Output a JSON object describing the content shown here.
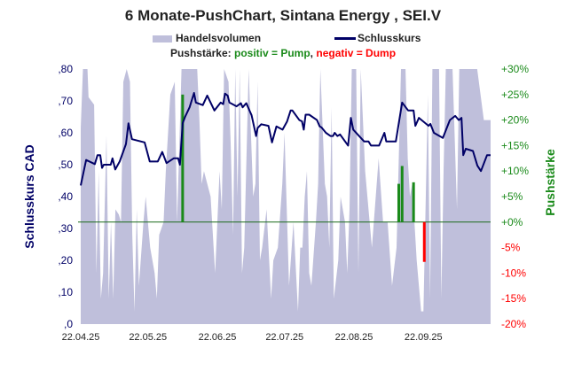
{
  "chart_data": {
    "type": "combo",
    "title": "6 Monate-PushChart, Sintana Energy , SEI.V",
    "legend": {
      "volume": "Handelsvolumen",
      "price": "Schlusskurs"
    },
    "push_legend": {
      "prefix": "Pushstärke:",
      "positive": "positiv = Pump",
      "comma": ",",
      "negative": "negativ = Dump"
    },
    "ylabel_left": "Schlusskurs CAD",
    "ylabel_right": "Pushstärke",
    "ylim_left": [
      0,
      0.8
    ],
    "ylim_right": [
      -20,
      30
    ],
    "left_ticks": [
      ",0",
      ",10",
      ",20",
      ",30",
      ",40",
      ",50",
      ",60",
      ",70",
      ",80"
    ],
    "right_ticks": [
      "-20%",
      "-15%",
      "-10%",
      "-5%",
      "+0%",
      "+5%",
      "+10%",
      "+15%",
      "+20%",
      "+25%",
      "+30%"
    ],
    "x_ticks": [
      {
        "label": "22.04.25",
        "day": 0
      },
      {
        "label": "22.05.25",
        "day": 30
      },
      {
        "label": "22.06.25",
        "day": 61
      },
      {
        "label": "22.07.25",
        "day": 91
      },
      {
        "label": "22.08.25",
        "day": 122
      },
      {
        "label": "22.09.25",
        "day": 153
      }
    ],
    "x_range_days": [
      0,
      183
    ],
    "colors": {
      "price": "#000066",
      "volume": "#bfbfdb",
      "pump": "#1a8a1a",
      "dump": "#ff0000",
      "zero": "#1a6a1a"
    },
    "price": [
      [
        0,
        0.435
      ],
      [
        2.4,
        0.515
      ],
      [
        6.3,
        0.502
      ],
      [
        7.5,
        0.53
      ],
      [
        8.7,
        0.53
      ],
      [
        9.5,
        0.49
      ],
      [
        10.3,
        0.5
      ],
      [
        13.4,
        0.5
      ],
      [
        14.2,
        0.52
      ],
      [
        15.4,
        0.485
      ],
      [
        17.4,
        0.51
      ],
      [
        20.2,
        0.565
      ],
      [
        21.3,
        0.63
      ],
      [
        22.9,
        0.58
      ],
      [
        28.5,
        0.57
      ],
      [
        30.8,
        0.51
      ],
      [
        34.4,
        0.51
      ],
      [
        36.4,
        0.54
      ],
      [
        38.3,
        0.505
      ],
      [
        41.5,
        0.52
      ],
      [
        43.5,
        0.52
      ],
      [
        44.3,
        0.5
      ],
      [
        45.5,
        0.63
      ],
      [
        46.6,
        0.65
      ],
      [
        48.6,
        0.68
      ],
      [
        50.6,
        0.725
      ],
      [
        51.4,
        0.695
      ],
      [
        54.5,
        0.687
      ],
      [
        56.5,
        0.717
      ],
      [
        59.7,
        0.67
      ],
      [
        62.5,
        0.695
      ],
      [
        63.6,
        0.69
      ],
      [
        64.4,
        0.723
      ],
      [
        65.6,
        0.717
      ],
      [
        66.4,
        0.695
      ],
      [
        69.6,
        0.683
      ],
      [
        71.5,
        0.693
      ],
      [
        72.3,
        0.68
      ],
      [
        73.9,
        0.693
      ],
      [
        76.3,
        0.655
      ],
      [
        78.3,
        0.59
      ],
      [
        79,
        0.615
      ],
      [
        80.6,
        0.627
      ],
      [
        83.8,
        0.622
      ],
      [
        85.4,
        0.57
      ],
      [
        87.4,
        0.62
      ],
      [
        90.1,
        0.61
      ],
      [
        92.1,
        0.635
      ],
      [
        93.7,
        0.67
      ],
      [
        94.5,
        0.67
      ],
      [
        97.6,
        0.64
      ],
      [
        98.8,
        0.636
      ],
      [
        99.6,
        0.61
      ],
      [
        100.4,
        0.657
      ],
      [
        102,
        0.657
      ],
      [
        105.5,
        0.64
      ],
      [
        106.7,
        0.62
      ],
      [
        107.5,
        0.617
      ],
      [
        109.5,
        0.6
      ],
      [
        111.5,
        0.59
      ],
      [
        112.6,
        0.59
      ],
      [
        113.4,
        0.6
      ],
      [
        114.6,
        0.59
      ],
      [
        115.8,
        0.595
      ],
      [
        119.4,
        0.56
      ],
      [
        120.6,
        0.647
      ],
      [
        121.7,
        0.61
      ],
      [
        126.5,
        0.573
      ],
      [
        128.5,
        0.573
      ],
      [
        129.6,
        0.56
      ],
      [
        133.2,
        0.56
      ],
      [
        135.6,
        0.6
      ],
      [
        136.4,
        0.573
      ],
      [
        140.7,
        0.573
      ],
      [
        143.5,
        0.695
      ],
      [
        146.2,
        0.67
      ],
      [
        148.6,
        0.67
      ],
      [
        149.4,
        0.622
      ],
      [
        151,
        0.647
      ],
      [
        155.3,
        0.622
      ],
      [
        156.1,
        0.628
      ],
      [
        157.7,
        0.6
      ],
      [
        161.7,
        0.584
      ],
      [
        164.8,
        0.64
      ],
      [
        167.2,
        0.653
      ],
      [
        168.8,
        0.64
      ],
      [
        170,
        0.647
      ],
      [
        170.8,
        0.53
      ],
      [
        171.9,
        0.55
      ],
      [
        175.1,
        0.543
      ],
      [
        177.1,
        0.497
      ],
      [
        178.7,
        0.48
      ],
      [
        181.4,
        0.53
      ],
      [
        183,
        0.53
      ]
    ],
    "volume_relative": [
      [
        0,
        0.77
      ],
      [
        1,
        1
      ],
      [
        3,
        1
      ],
      [
        3.5,
        0.89
      ],
      [
        6,
        0.86
      ],
      [
        7,
        0.2
      ],
      [
        8,
        0.6
      ],
      [
        9,
        0.1
      ],
      [
        10,
        0.2
      ],
      [
        11.5,
        0.74
      ],
      [
        12.5,
        0.1
      ],
      [
        13.5,
        0.4
      ],
      [
        14.5,
        0.1
      ],
      [
        15.5,
        0.45
      ],
      [
        17,
        0.43
      ],
      [
        18,
        0.4
      ],
      [
        19,
        0.95
      ],
      [
        20.5,
        1
      ],
      [
        22,
        0.95
      ],
      [
        23,
        0.35
      ],
      [
        24,
        0.05
      ],
      [
        25,
        0.45
      ],
      [
        26,
        0.15
      ],
      [
        28,
        0.4
      ],
      [
        29,
        0.5
      ],
      [
        30,
        0.4
      ],
      [
        31,
        0.3
      ],
      [
        33,
        0.2
      ],
      [
        34,
        0.1
      ],
      [
        35,
        0.35
      ],
      [
        37,
        0.4
      ],
      [
        38,
        0.6
      ],
      [
        40,
        0.9
      ],
      [
        42,
        0.95
      ],
      [
        43,
        0.4
      ],
      [
        44,
        0.7
      ],
      [
        45,
        1
      ],
      [
        48,
        1
      ],
      [
        52,
        1
      ],
      [
        53,
        0.8
      ],
      [
        54,
        0.55
      ],
      [
        55,
        0.6
      ],
      [
        58,
        0.5
      ],
      [
        60,
        0.2
      ],
      [
        62,
        0.6
      ],
      [
        63,
        0.45
      ],
      [
        64,
        1
      ],
      [
        66,
        0.95
      ],
      [
        67,
        0.7
      ],
      [
        68,
        0.35
      ],
      [
        69,
        1
      ],
      [
        70,
        0.5
      ],
      [
        71,
        1
      ],
      [
        72,
        0.2
      ],
      [
        73,
        0.3
      ],
      [
        75,
        1
      ],
      [
        77,
        0.5
      ],
      [
        78,
        0.55
      ],
      [
        79,
        0.95
      ],
      [
        80,
        0.25
      ],
      [
        81,
        0.3
      ],
      [
        83,
        0.45
      ],
      [
        85,
        0.1
      ],
      [
        86,
        0.25
      ],
      [
        88,
        0.3
      ],
      [
        90,
        0.55
      ],
      [
        91,
        0.75
      ],
      [
        93,
        0.15
      ],
      [
        95,
        0.4
      ],
      [
        97,
        0.05
      ],
      [
        98,
        0.3
      ],
      [
        99,
        0.3
      ],
      [
        100,
        0.5
      ],
      [
        101,
        0.6
      ],
      [
        102,
        0.2
      ],
      [
        103,
        0.15
      ],
      [
        105,
        0.4
      ],
      [
        106,
        0.55
      ],
      [
        107,
        1
      ],
      [
        109,
        0.55
      ],
      [
        110,
        0.5
      ],
      [
        111,
        0.3
      ],
      [
        112,
        0.85
      ],
      [
        113,
        0.1
      ],
      [
        115,
        0.25
      ],
      [
        116,
        0.5
      ],
      [
        118,
        0.4
      ],
      [
        119,
        0.2
      ],
      [
        120,
        0.45
      ],
      [
        121,
        1
      ],
      [
        123,
        1
      ],
      [
        124,
        0.2
      ],
      [
        125,
        1
      ],
      [
        127,
        0.6
      ],
      [
        130,
        0.3
      ],
      [
        133,
        0.65
      ],
      [
        135,
        0.4
      ],
      [
        137,
        0.4
      ],
      [
        139,
        0.15
      ],
      [
        141,
        0.3
      ],
      [
        143,
        1
      ],
      [
        145,
        1
      ],
      [
        146,
        0.65
      ],
      [
        147,
        0.5
      ],
      [
        148,
        0.55
      ],
      [
        150,
        0.25
      ],
      [
        152,
        0.05
      ],
      [
        153,
        0.05
      ],
      [
        155,
        0.9
      ],
      [
        156,
        0.1
      ],
      [
        157,
        1
      ],
      [
        160,
        1
      ],
      [
        161,
        0.1
      ],
      [
        162,
        0.6
      ],
      [
        163,
        1
      ],
      [
        166,
        1
      ],
      [
        168,
        0.45
      ],
      [
        169,
        1
      ],
      [
        177,
        1
      ],
      [
        180,
        0.8
      ],
      [
        183,
        0.8
      ]
    ],
    "push": [
      [
        45.5,
        25
      ],
      [
        142,
        7.5
      ],
      [
        143.5,
        11
      ],
      [
        148.6,
        7.8
      ],
      [
        153.4,
        -7.8
      ]
    ]
  }
}
